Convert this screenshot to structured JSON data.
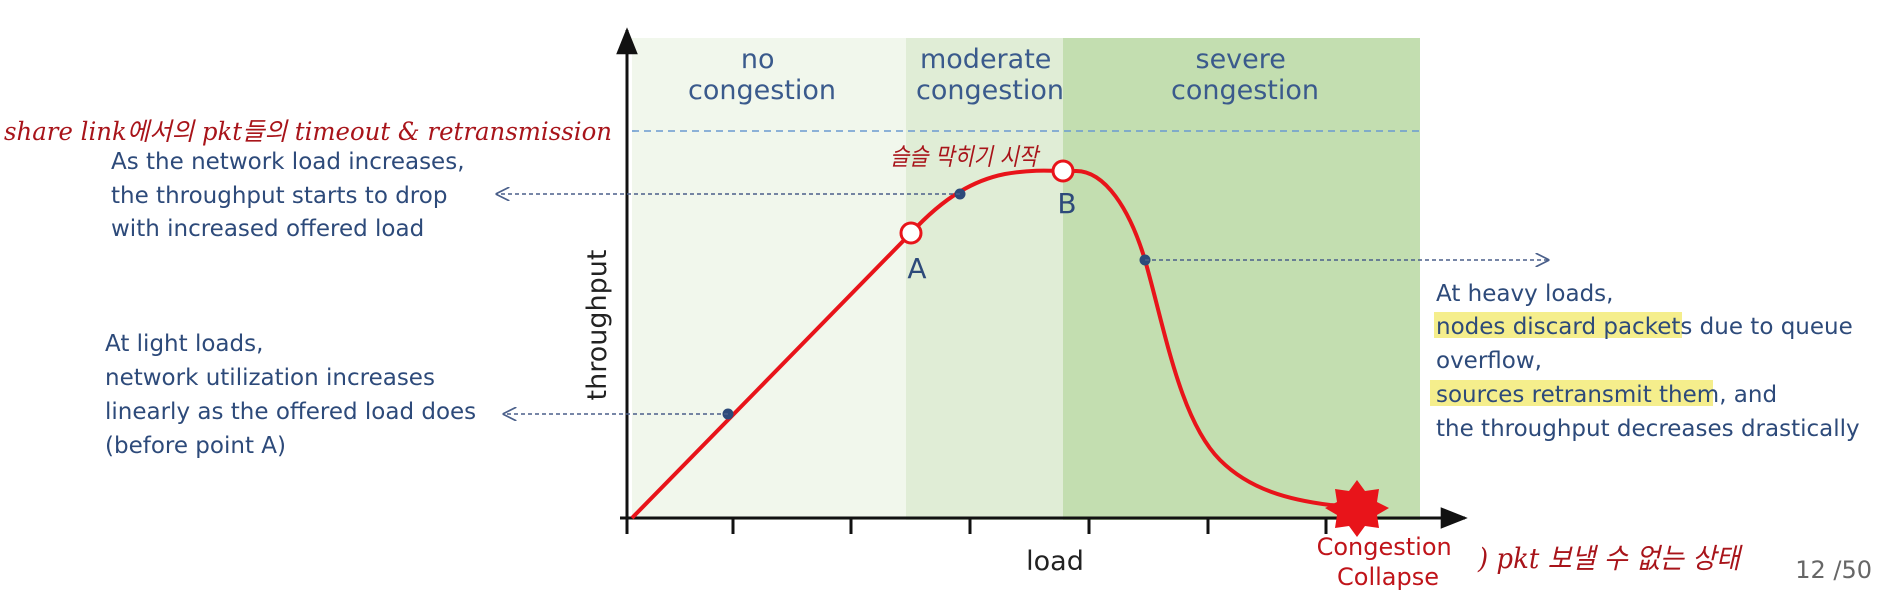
{
  "chart_data": {
    "type": "line",
    "xlabel": "load",
    "ylabel": "throughput",
    "zones": [
      "no\ncongestion",
      "moderate\ncongestion",
      "severe\ncongestion"
    ],
    "points": {
      "A": "A",
      "B": "B"
    },
    "collapse_label": "Congestion\nCollapse",
    "series": [
      {
        "values": [
          [
            0,
            0
          ],
          [
            1,
            1.1
          ],
          [
            2,
            2.2
          ],
          [
            3,
            3.3
          ],
          [
            4,
            4.2
          ],
          [
            5,
            4.65
          ],
          [
            5.6,
            4.78
          ],
          [
            6,
            4.6
          ],
          [
            6.4,
            3.9
          ],
          [
            6.8,
            2.3
          ],
          [
            7.2,
            1.0
          ],
          [
            7.6,
            0.45
          ],
          [
            8.2,
            0.15
          ],
          [
            8.8,
            0.05
          ]
        ]
      }
    ]
  },
  "annotations": {
    "upper_left": "As the network load increases,\nthe throughput starts to drop\nwith increased offered load",
    "lower_left": "At light loads,\nnetwork utilization increases\nlinearly as the offered load does\n(before point A)",
    "right_line1": "At heavy loads,",
    "right_highlight1": "nodes discard packets",
    "right_line2_rest": " due to queue",
    "right_line3": "overflow,",
    "right_highlight2": "sources retransmit them",
    "right_line4_rest": ", and",
    "right_line5": "the throughput decreases drastically"
  },
  "handwriting": {
    "top": "share link에서의 pkt들의 timeout & retransmission",
    "peak": "슬슬 막히기 시작",
    "collapse": ") pkt 보낼 수 없는 상태"
  },
  "page_number": "12 /50",
  "colors": {
    "zone_none": "#f1f7ec",
    "zone_moderate": "#e0edd6",
    "zone_severe": "#c3deb0",
    "curve": "#e8141a",
    "note": "#2d4a7a",
    "highlight": "#f5ee8c",
    "dashed_arrow": "#4a5f8a",
    "capacity_line": "#6a9ad0"
  }
}
